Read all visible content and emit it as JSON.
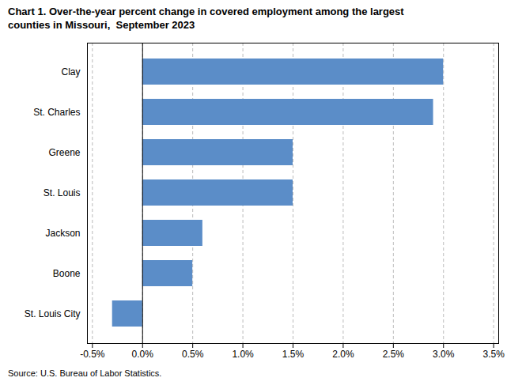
{
  "chart_data": {
    "type": "bar",
    "orientation": "horizontal",
    "title": "Chart 1. Over-the-year percent change in covered employment among the largest\ncounties in Missouri,  September 2023",
    "source": "Source: U.S. Bureau of Labor Statistics.",
    "categories": [
      "St. Louis City",
      "Boone",
      "Jackson",
      "St. Louis",
      "Greene",
      "St. Charles",
      "Clay"
    ],
    "values": [
      -0.3,
      0.5,
      0.6,
      1.5,
      1.5,
      2.9,
      3.0
    ],
    "color": "#5b8dc8",
    "xlim": [
      -0.55,
      3.55
    ],
    "xticks": [
      {
        "value": -0.5,
        "label": "-0.5%"
      },
      {
        "value": 0.0,
        "label": "0.0%"
      },
      {
        "value": 0.5,
        "label": "0.5%"
      },
      {
        "value": 1.0,
        "label": "1.0%"
      },
      {
        "value": 1.5,
        "label": "1.5%"
      },
      {
        "value": 2.0,
        "label": "2.0%"
      },
      {
        "value": 2.5,
        "label": "2.5%"
      },
      {
        "value": 3.0,
        "label": "3.0%"
      },
      {
        "value": 3.5,
        "label": "3.5%"
      }
    ],
    "grid": true
  }
}
